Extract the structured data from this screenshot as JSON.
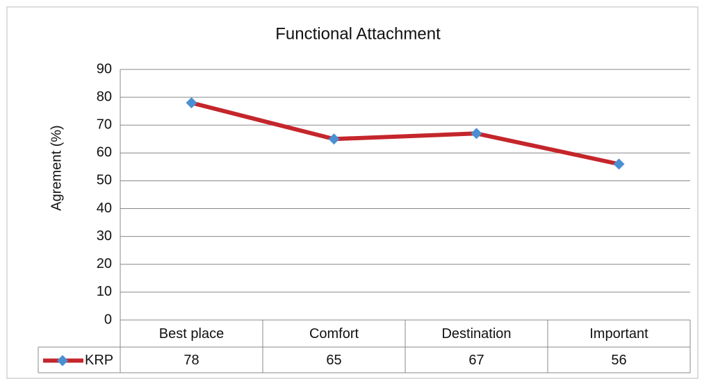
{
  "chart_data": {
    "type": "line",
    "title": "Functional Attachment",
    "y_label": "Agrement (%)",
    "categories": [
      "Best place",
      "Comfort",
      "Destination",
      "Important"
    ],
    "series": [
      {
        "name": "KRP",
        "color": "#c4262b",
        "marker_color": "#4a8fd2",
        "values": [
          78,
          65,
          67,
          56
        ]
      }
    ],
    "ylim": [
      0,
      90
    ],
    "yticks": [
      0,
      10,
      20,
      30,
      40,
      50,
      60,
      70,
      80,
      90
    ],
    "grid": true,
    "data_table": true
  }
}
